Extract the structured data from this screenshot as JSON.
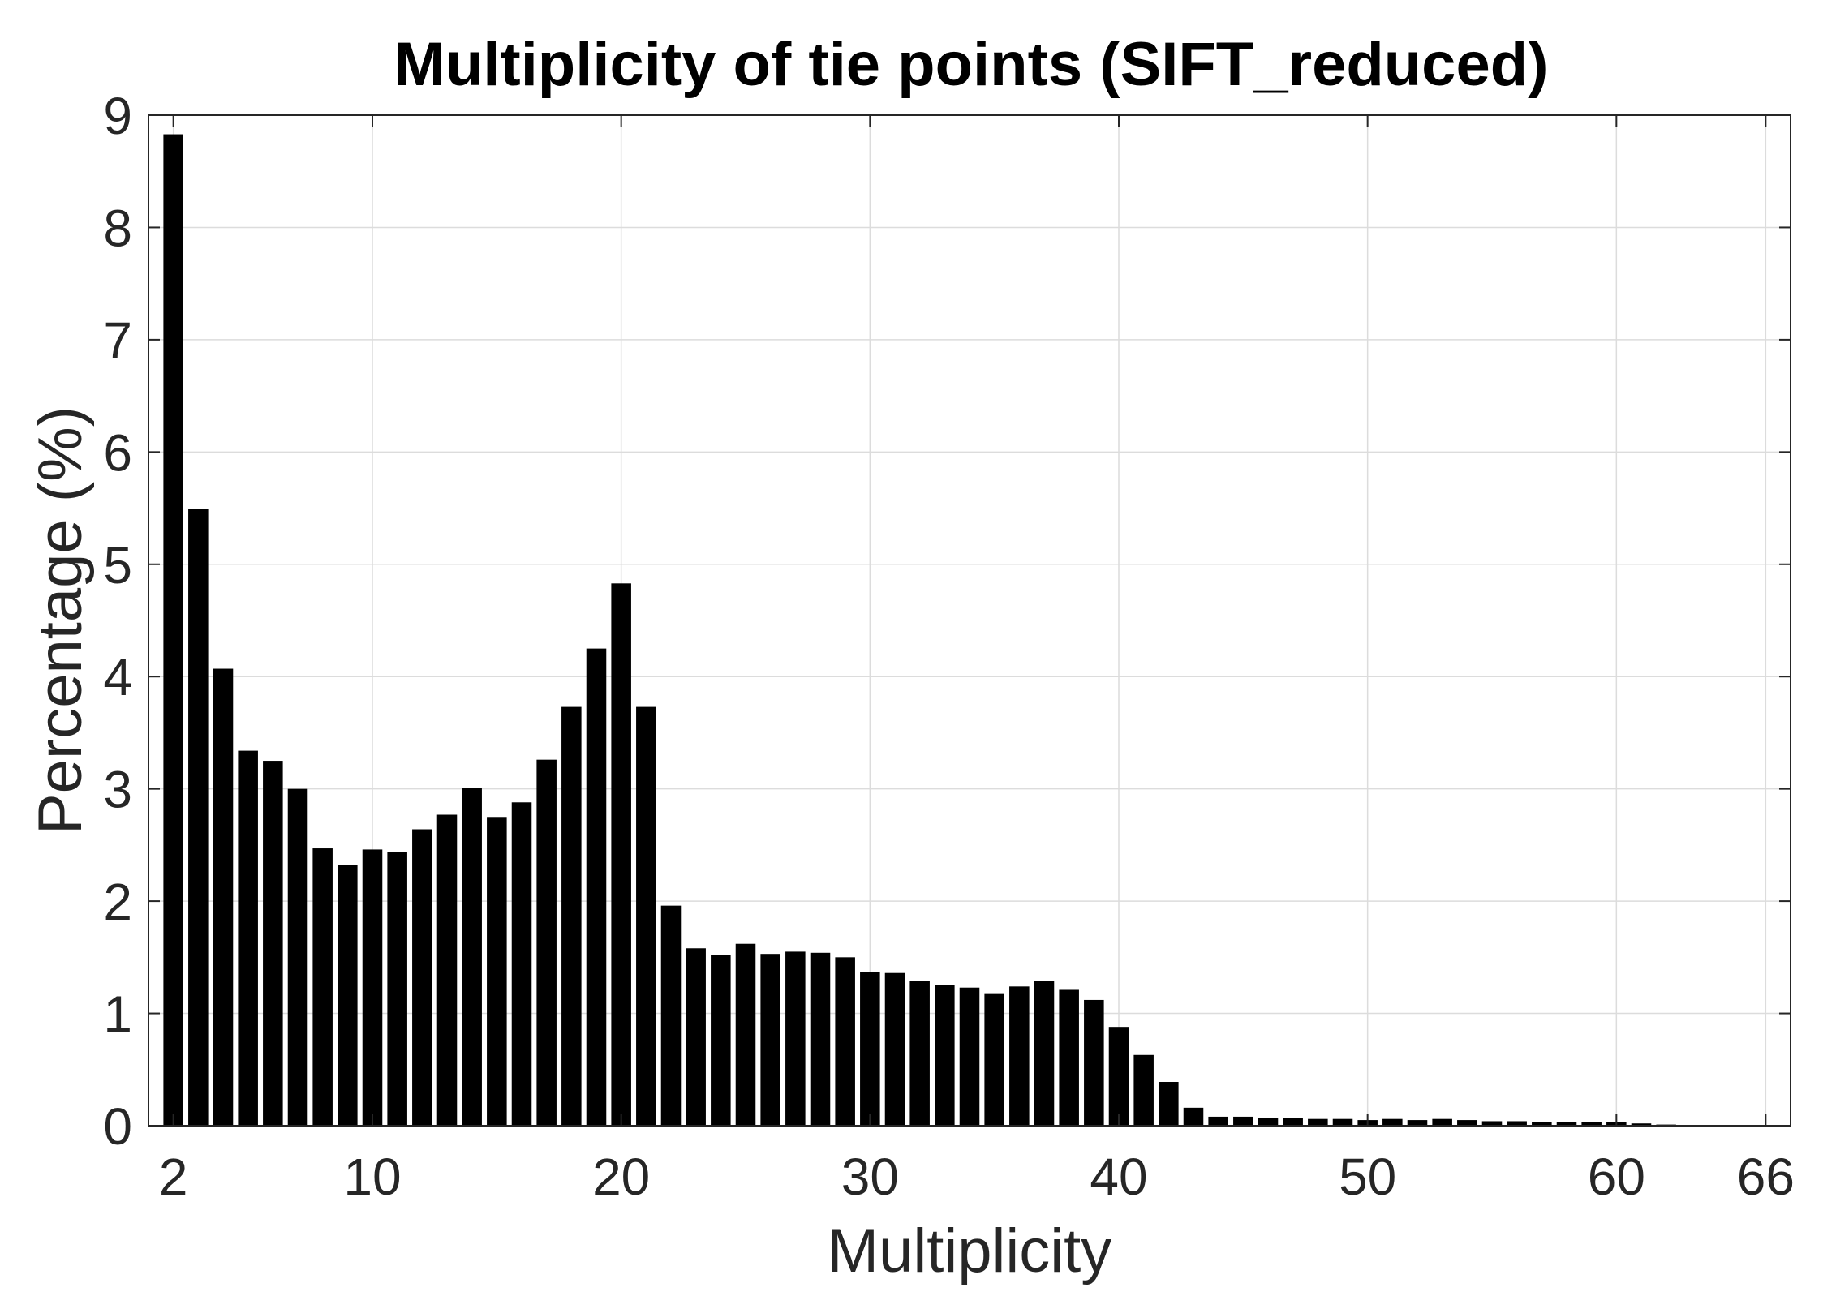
{
  "chart_data": {
    "type": "bar",
    "title": "Multiplicity of tie points (SIFT_reduced)",
    "xlabel": "Multiplicity",
    "ylabel": "Percentage (%)",
    "x": [
      2,
      3,
      4,
      5,
      6,
      7,
      8,
      9,
      10,
      11,
      12,
      13,
      14,
      15,
      16,
      17,
      18,
      19,
      20,
      21,
      22,
      23,
      24,
      25,
      26,
      27,
      28,
      29,
      30,
      31,
      32,
      33,
      34,
      35,
      36,
      37,
      38,
      39,
      40,
      41,
      42,
      43,
      44,
      45,
      46,
      47,
      48,
      49,
      50,
      51,
      52,
      53,
      54,
      55,
      56,
      57,
      58,
      59,
      60,
      61,
      62,
      63,
      64,
      65,
      66
    ],
    "values": [
      8.83,
      5.49,
      4.07,
      3.34,
      3.25,
      3.0,
      2.47,
      2.32,
      2.46,
      2.44,
      2.64,
      2.77,
      3.01,
      2.75,
      2.88,
      3.26,
      3.73,
      4.25,
      4.83,
      3.73,
      1.96,
      1.58,
      1.52,
      1.62,
      1.53,
      1.55,
      1.54,
      1.5,
      1.37,
      1.36,
      1.29,
      1.25,
      1.23,
      1.18,
      1.24,
      1.29,
      1.21,
      1.12,
      0.88,
      0.63,
      0.39,
      0.16,
      0.08,
      0.08,
      0.07,
      0.07,
      0.06,
      0.06,
      0.05,
      0.06,
      0.05,
      0.06,
      0.05,
      0.04,
      0.04,
      0.03,
      0.03,
      0.03,
      0.03,
      0.02,
      0.01,
      0.0,
      0.0,
      0.0,
      0.0
    ],
    "xlim": [
      1,
      67
    ],
    "ylim": [
      0,
      9
    ],
    "xticks": [
      2,
      10,
      20,
      30,
      40,
      50,
      60,
      66
    ],
    "yticks": [
      0,
      1,
      2,
      3,
      4,
      5,
      6,
      7,
      8,
      9
    ],
    "grid": true,
    "bar_color": "#000000"
  }
}
